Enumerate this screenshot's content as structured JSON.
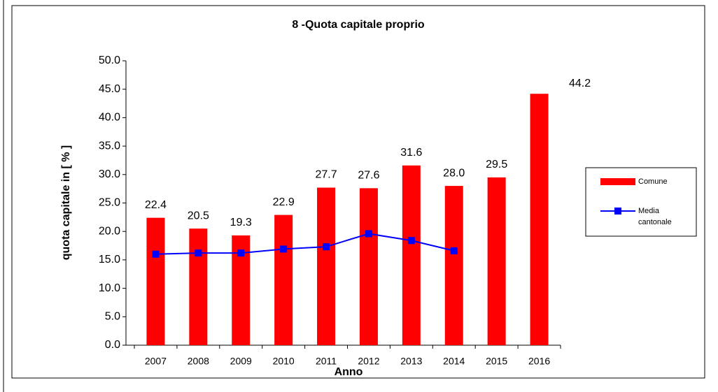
{
  "chart_data": {
    "type": "bar-line",
    "title": "8 -Quota capitale proprio",
    "xlabel": "Anno",
    "ylabel": "quota capitale in [ % ]",
    "categories": [
      "2007",
      "2008",
      "2009",
      "2010",
      "2011",
      "2012",
      "2013",
      "2014",
      "2015",
      "2016"
    ],
    "series": [
      {
        "name": "Comune",
        "type": "bar",
        "color": "#ff0000",
        "values": [
          22.4,
          20.5,
          19.3,
          22.9,
          27.7,
          27.6,
          31.6,
          28.0,
          29.5,
          44.2
        ],
        "value_labels": [
          "22.4",
          "20.5",
          "19.3",
          "22.9",
          "27.7",
          "27.6",
          "31.6",
          "28.0",
          "29.5",
          "44.2"
        ]
      },
      {
        "name": "Media cantonale",
        "type": "line",
        "color": "#0000ff",
        "values": [
          16.0,
          16.2,
          16.2,
          16.9,
          17.3,
          19.6,
          18.4,
          16.6,
          null,
          null
        ]
      }
    ],
    "ylim": [
      0,
      50
    ],
    "yticks": [
      {
        "value": 0,
        "label": "0.0"
      },
      {
        "value": 5,
        "label": "5.0"
      },
      {
        "value": 10,
        "label": "10.0"
      },
      {
        "value": 15,
        "label": "15.0"
      },
      {
        "value": 20,
        "label": "20.0"
      },
      {
        "value": 25,
        "label": "25.0"
      },
      {
        "value": 30,
        "label": "30.0"
      },
      {
        "value": 35,
        "label": "35.0"
      },
      {
        "value": 40,
        "label": "40.0"
      },
      {
        "value": 45,
        "label": "45.0"
      },
      {
        "value": 50,
        "label": "50.0"
      }
    ],
    "grid": false
  }
}
